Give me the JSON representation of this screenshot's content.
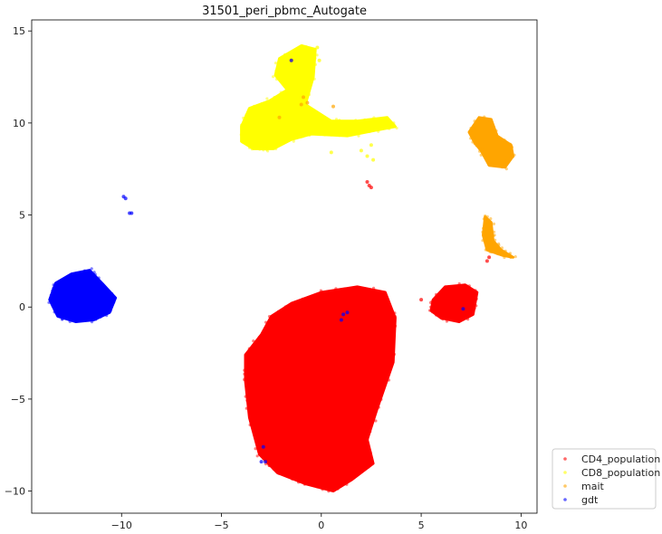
{
  "chart_data": {
    "type": "scatter",
    "title": "31501_peri_pbmc_Autogate",
    "xlabel": "",
    "ylabel": "",
    "xlim": [
      -14.5,
      10.8
    ],
    "ylim": [
      -11.2,
      15.6
    ],
    "xticks": [
      -10,
      -5,
      0,
      5,
      10
    ],
    "yticks": [
      -10,
      -5,
      0,
      5,
      10,
      15
    ],
    "xtick_labels": [
      "−10",
      "−5",
      "0",
      "5",
      "10"
    ],
    "ytick_labels": [
      "−10",
      "−5",
      "0",
      "5",
      "10",
      "15"
    ],
    "grid": false,
    "legend_position": "outside-bottom-right",
    "series": [
      {
        "name": "CD4_population",
        "color": "#ff0000",
        "clusters": [
          {
            "shape": "polygon",
            "points": [
              [
                -3.8,
                -2.6
              ],
              [
                -3.0,
                -1.5
              ],
              [
                -2.5,
                -0.5
              ],
              [
                -1.5,
                0.2
              ],
              [
                0,
                0.8
              ],
              [
                1.8,
                1.1
              ],
              [
                3.2,
                0.8
              ],
              [
                3.7,
                -0.6
              ],
              [
                3.6,
                -3.0
              ],
              [
                2.8,
                -5.5
              ],
              [
                2.3,
                -7.2
              ],
              [
                2.6,
                -8.5
              ],
              [
                1.5,
                -9.4
              ],
              [
                0.6,
                -10.0
              ],
              [
                -0.8,
                -9.6
              ],
              [
                -2.2,
                -9.0
              ],
              [
                -3.1,
                -8.0
              ],
              [
                -3.6,
                -6.0
              ],
              [
                -3.8,
                -4.0
              ]
            ]
          },
          {
            "shape": "polygon",
            "points": [
              [
                5.6,
                0.4
              ],
              [
                6.2,
                1.1
              ],
              [
                7.2,
                1.2
              ],
              [
                7.8,
                0.8
              ],
              [
                7.6,
                -0.4
              ],
              [
                6.9,
                -0.8
              ],
              [
                6.0,
                -0.6
              ],
              [
                5.5,
                -0.2
              ]
            ]
          },
          {
            "shape": "scatter",
            "points": [
              [
                2.3,
                6.8
              ],
              [
                2.5,
                6.5
              ],
              [
                2.4,
                6.6
              ],
              [
                8.3,
                2.5
              ],
              [
                8.4,
                2.7
              ],
              [
                5.0,
                0.4
              ],
              [
                -2.6,
                -8.6
              ]
            ]
          }
        ]
      },
      {
        "name": "CD8_population",
        "color": "#ffff00",
        "clusters": [
          {
            "shape": "polygon",
            "points": [
              [
                -4.0,
                9.8
              ],
              [
                -3.6,
                10.8
              ],
              [
                -2.6,
                11.2
              ],
              [
                -1.7,
                11.8
              ],
              [
                -2.3,
                12.6
              ],
              [
                -2.1,
                13.5
              ],
              [
                -1.0,
                14.2
              ],
              [
                -0.3,
                14.0
              ],
              [
                -0.4,
                12.5
              ],
              [
                -0.8,
                11.0
              ],
              [
                0.5,
                10.1
              ],
              [
                1.8,
                10.1
              ],
              [
                3.3,
                10.3
              ],
              [
                3.7,
                9.8
              ],
              [
                2.7,
                9.6
              ],
              [
                1.3,
                9.3
              ],
              [
                -0.5,
                9.4
              ],
              [
                -1.5,
                9.1
              ],
              [
                -2.4,
                8.6
              ],
              [
                -3.4,
                8.6
              ],
              [
                -4.0,
                9.0
              ]
            ]
          },
          {
            "shape": "scatter",
            "points": [
              [
                2.0,
                8.5
              ],
              [
                2.3,
                8.2
              ],
              [
                2.6,
                8.0
              ],
              [
                2.5,
                8.8
              ],
              [
                0.5,
                8.4
              ],
              [
                -0.1,
                13.4
              ],
              [
                -0.2,
                14.1
              ],
              [
                -1.3,
                13.9
              ]
            ]
          }
        ]
      },
      {
        "name": "mait",
        "color": "#ffa500",
        "clusters": [
          {
            "shape": "polygon",
            "points": [
              [
                7.4,
                9.5
              ],
              [
                7.9,
                10.3
              ],
              [
                8.5,
                10.2
              ],
              [
                8.8,
                9.3
              ],
              [
                9.5,
                8.8
              ],
              [
                9.6,
                8.2
              ],
              [
                9.2,
                7.6
              ],
              [
                8.4,
                7.7
              ],
              [
                8.0,
                8.5
              ],
              [
                7.7,
                8.9
              ]
            ]
          },
          {
            "shape": "polygon",
            "points": [
              [
                8.2,
                4.9
              ],
              [
                8.5,
                4.6
              ],
              [
                8.6,
                3.6
              ],
              [
                9.0,
                3.1
              ],
              [
                9.6,
                2.7
              ],
              [
                9.1,
                2.8
              ],
              [
                8.3,
                3.1
              ],
              [
                8.1,
                3.9
              ]
            ]
          },
          {
            "shape": "scatter",
            "points": [
              [
                0.6,
                10.9
              ],
              [
                -0.7,
                11.1
              ],
              [
                -1.0,
                11.0
              ],
              [
                -2.1,
                10.3
              ],
              [
                -1.5,
                13.4
              ],
              [
                -0.9,
                11.4
              ]
            ]
          }
        ]
      },
      {
        "name": "gdt",
        "color": "#0000ff",
        "clusters": [
          {
            "shape": "polygon",
            "points": [
              [
                -13.6,
                0.4
              ],
              [
                -13.3,
                1.3
              ],
              [
                -12.5,
                1.8
              ],
              [
                -11.6,
                2.0
              ],
              [
                -10.9,
                1.2
              ],
              [
                -10.3,
                0.5
              ],
              [
                -10.6,
                -0.3
              ],
              [
                -11.4,
                -0.7
              ],
              [
                -12.3,
                -0.8
              ],
              [
                -13.2,
                -0.5
              ]
            ]
          },
          {
            "shape": "scatter",
            "points": [
              [
                -9.9,
                6.0
              ],
              [
                -9.8,
                5.9
              ],
              [
                -9.6,
                5.1
              ],
              [
                -9.5,
                5.1
              ],
              [
                1.1,
                -0.4
              ],
              [
                1.0,
                -0.7
              ],
              [
                1.3,
                -0.3
              ],
              [
                -2.9,
                -7.6
              ],
              [
                -2.8,
                -8.4
              ],
              [
                -3.0,
                -8.4
              ],
              [
                7.1,
                -0.1
              ],
              [
                -1.5,
                13.4
              ]
            ]
          }
        ]
      }
    ]
  }
}
